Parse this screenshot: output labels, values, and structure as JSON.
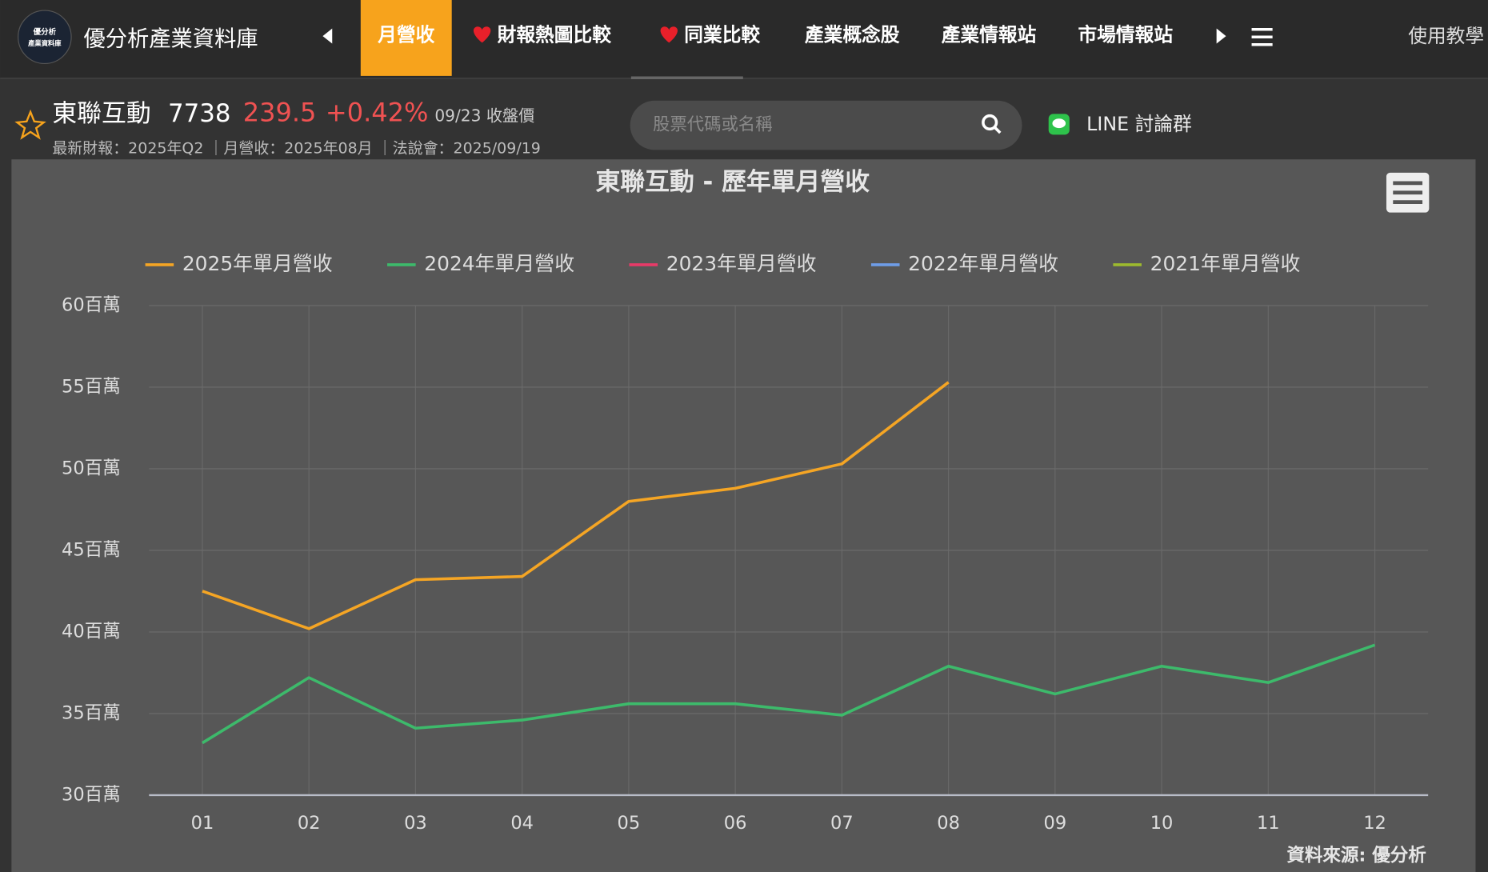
{
  "nav": {
    "logo_lines": [
      "優分析",
      "產業資料庫"
    ],
    "brand": "優分析產業資料庫",
    "items": [
      "月營收",
      "財報熱圖比較",
      "同業比較",
      "產業概念股",
      "產業情報站",
      "市場情報站"
    ],
    "right": "使用教學"
  },
  "stock": {
    "name": "東聯互動",
    "code": "7738",
    "price": "239.5",
    "change": "+0.42%",
    "date_note": "09/23 收盤價",
    "info": "最新財報：2025年Q2 ｜月營收：2025年08月 ｜法說會：2025/09/19"
  },
  "search": {
    "placeholder": "股票代碼或名稱"
  },
  "line_group": "LINE 討論群",
  "chart_data": {
    "type": "line",
    "title": "東聯互動 - 歷年單月營收",
    "categories": [
      "01",
      "02",
      "03",
      "04",
      "05",
      "06",
      "07",
      "08",
      "09",
      "10",
      "11",
      "12"
    ],
    "series": [
      {
        "name": "2025年單月營收",
        "color": "#f5a524",
        "values": [
          42.5,
          40.2,
          43.2,
          43.4,
          48.0,
          48.8,
          50.3,
          55.3,
          null,
          null,
          null,
          null
        ]
      },
      {
        "name": "2024年單月營收",
        "color": "#3dba6b",
        "values": [
          33.2,
          37.2,
          34.1,
          34.6,
          35.6,
          35.6,
          34.9,
          37.9,
          36.2,
          37.9,
          36.9,
          39.2
        ]
      },
      {
        "name": "2023年單月營收",
        "color": "#e83a68",
        "values": [
          null,
          null,
          null,
          null,
          null,
          null,
          null,
          null,
          null,
          null,
          null,
          null
        ]
      },
      {
        "name": "2022年單月營收",
        "color": "#6e9de8",
        "values": [
          null,
          null,
          null,
          null,
          null,
          null,
          null,
          null,
          null,
          null,
          null,
          null
        ]
      },
      {
        "name": "2021年單月營收",
        "color": "#9dba2e",
        "values": [
          null,
          null,
          null,
          null,
          null,
          null,
          null,
          null,
          null,
          null,
          null,
          null
        ]
      }
    ],
    "ylim": [
      30,
      60
    ],
    "yticks": [
      {
        "value": 30,
        "label": "30百萬"
      },
      {
        "value": 35,
        "label": "35百萬"
      },
      {
        "value": 40,
        "label": "40百萬"
      },
      {
        "value": 45,
        "label": "45百萬"
      },
      {
        "value": 50,
        "label": "50百萬"
      },
      {
        "value": 55,
        "label": "55百萬"
      },
      {
        "value": 60,
        "label": "60百萬"
      }
    ],
    "grid": true,
    "legend": "top",
    "source": "資料來源: 優分析"
  }
}
